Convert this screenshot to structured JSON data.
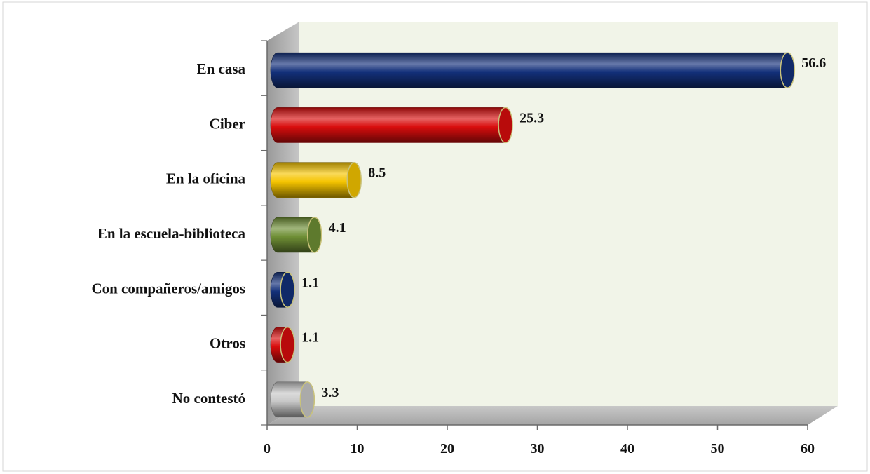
{
  "chart_data": {
    "type": "bar",
    "orientation": "horizontal",
    "categories": [
      "En casa",
      "Ciber",
      "En la oficina",
      "En la escuela-biblioteca",
      "Con compañeros/amigos",
      "Otros",
      "No contestó"
    ],
    "values": [
      56.6,
      25.3,
      8.5,
      4.1,
      1.1,
      1.1,
      3.3
    ],
    "value_labels": [
      "56.6",
      "25.3",
      "8.5",
      "4.1",
      "1.1",
      "1.1",
      "3.3"
    ],
    "colors": [
      "#13307a",
      "#d90d0d",
      "#f5c400",
      "#6f8f35",
      "#13307a",
      "#d90d0d",
      "#c8c8c8"
    ],
    "xlim": [
      0,
      60
    ],
    "xticks": [
      "0",
      "10",
      "20",
      "30",
      "40",
      "50",
      "60"
    ],
    "xtick_values": [
      0,
      10,
      20,
      30,
      40,
      50,
      60
    ],
    "style": "3d-cylinder",
    "grid": false,
    "legend": "none"
  }
}
